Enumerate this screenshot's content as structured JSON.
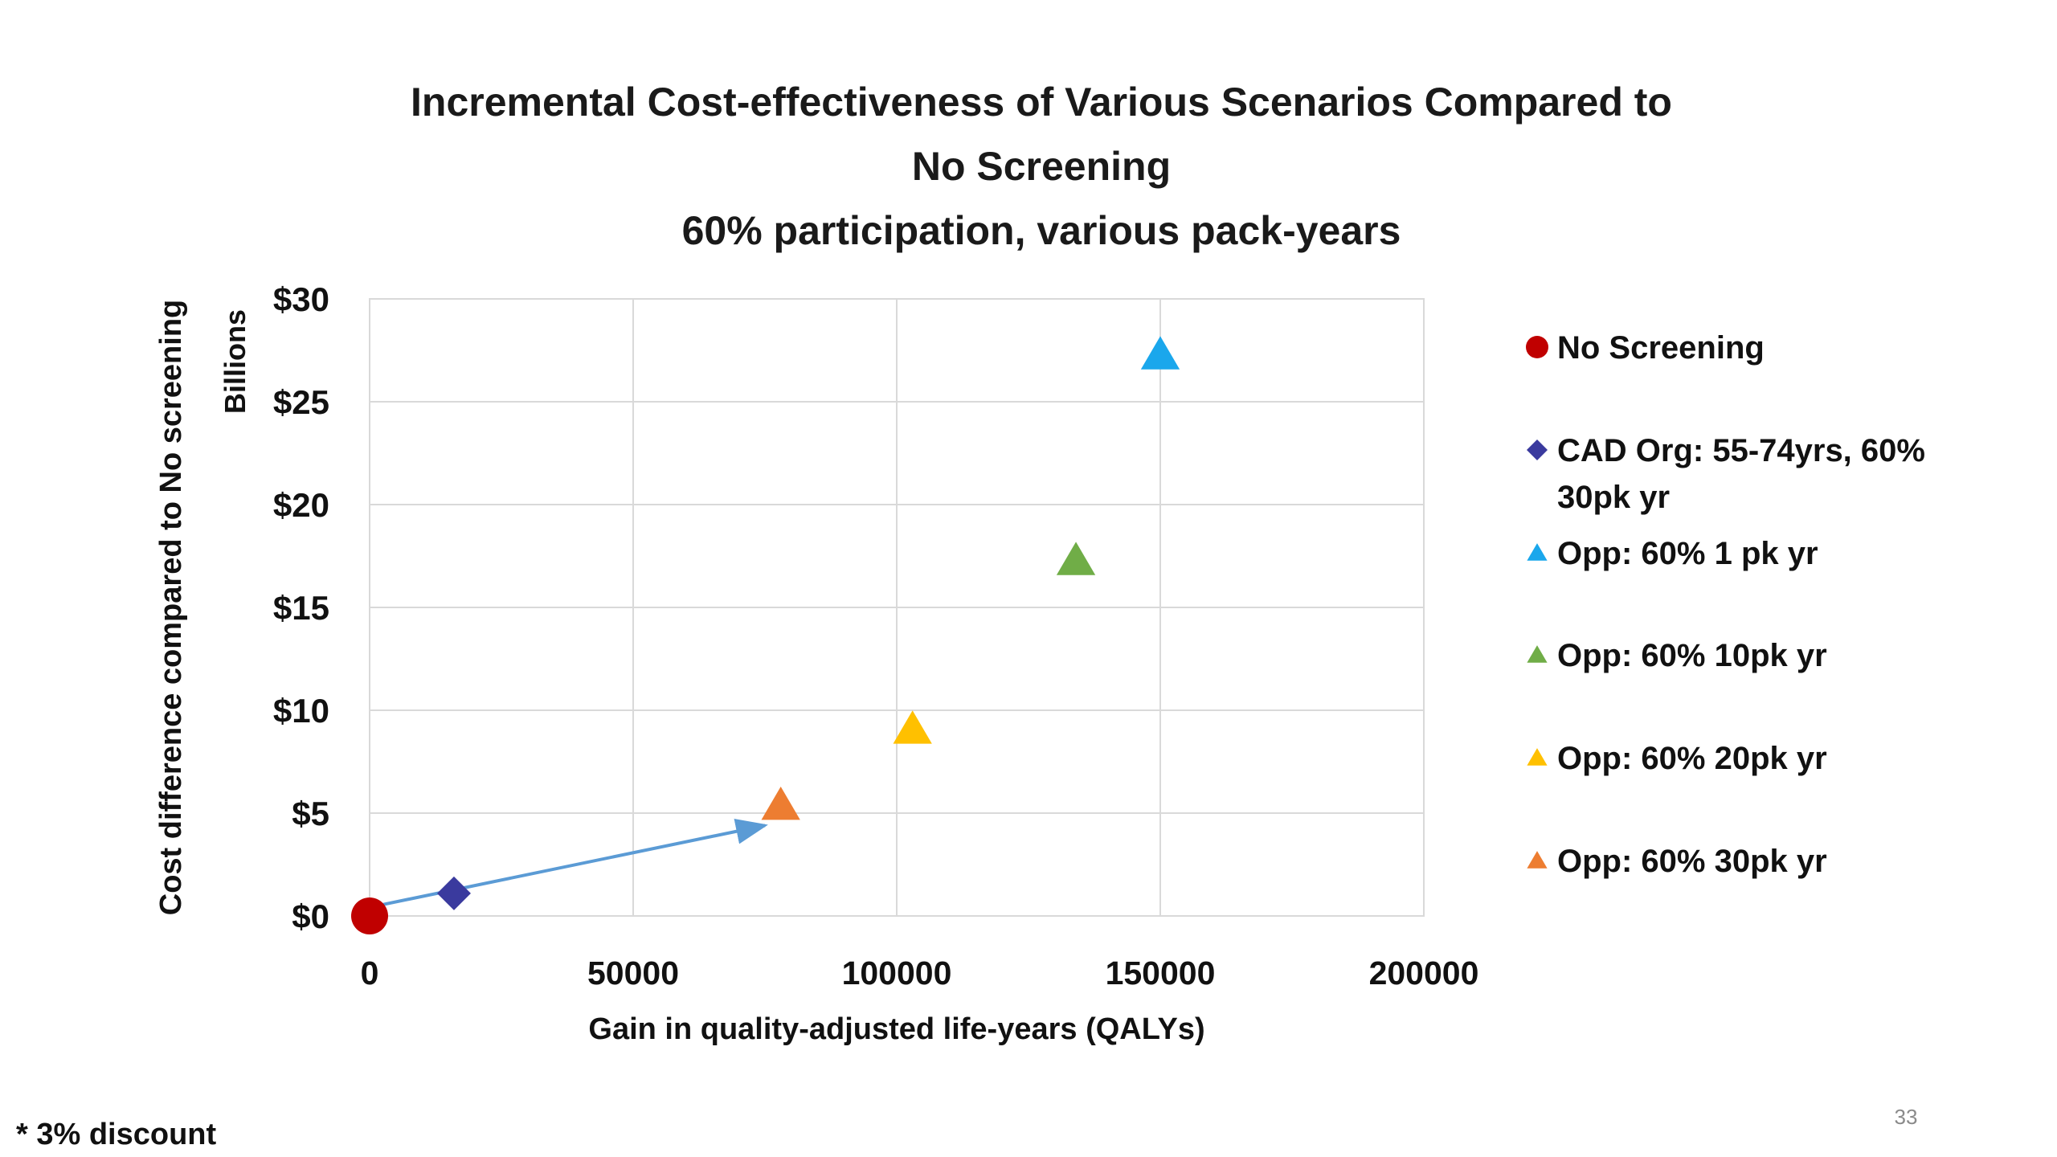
{
  "slide": {
    "footnote": "* 3% discount",
    "page_number": "33"
  },
  "chart_data": {
    "type": "scatter",
    "title": [
      "Incremental Cost-effectiveness of Various Scenarios Compared to",
      "No Screening",
      "60% participation, various pack-years"
    ],
    "xlabel": "Gain in quality-adjusted life-years (QALYs)",
    "ylabel": "Cost difference compared to No screening",
    "y_unit_label": "Billions",
    "xlim": [
      0,
      200000
    ],
    "ylim": [
      0,
      30
    ],
    "x_ticks": [
      0,
      50000,
      100000,
      150000,
      200000
    ],
    "x_tick_labels": [
      "0",
      "50000",
      "100000",
      "150000",
      "200000"
    ],
    "y_ticks": [
      0,
      5,
      10,
      15,
      20,
      25,
      30
    ],
    "y_tick_labels": [
      "$0",
      "$5",
      "$10",
      "$15",
      "$20",
      "$25",
      "$30"
    ],
    "grid": true,
    "legend_position": "right",
    "series": [
      {
        "name": "No Screening",
        "marker": "circle",
        "color": "#c00000",
        "x": [
          0
        ],
        "y": [
          0
        ]
      },
      {
        "name": "CAD Org: 55-74yrs, 60% 30pk yr",
        "legend_lines": [
          "CAD Org: 55-74yrs, 60%",
          "30pk yr"
        ],
        "marker": "diamond",
        "color": "#3a3a9e",
        "x": [
          16000
        ],
        "y": [
          1.1
        ]
      },
      {
        "name": "Opp: 60% 1 pk yr",
        "marker": "triangle",
        "color": "#1aa7ec",
        "x": [
          150000
        ],
        "y": [
          27.3
        ]
      },
      {
        "name": "Opp: 60% 10pk yr",
        "marker": "triangle",
        "color": "#70ad47",
        "x": [
          134000
        ],
        "y": [
          17.3
        ]
      },
      {
        "name": "Opp: 60% 20pk yr",
        "marker": "triangle",
        "color": "#ffc000",
        "x": [
          103000
        ],
        "y": [
          9.1
        ]
      },
      {
        "name": "Opp: 60% 30pk yr",
        "marker": "triangle",
        "color": "#ed7d31",
        "x": [
          78000
        ],
        "y": [
          5.4
        ]
      }
    ],
    "annotations": [
      {
        "type": "arrow",
        "color": "#5b9bd5",
        "from": [
          1500,
          0.5
        ],
        "to": [
          75000,
          4.4
        ]
      }
    ]
  }
}
